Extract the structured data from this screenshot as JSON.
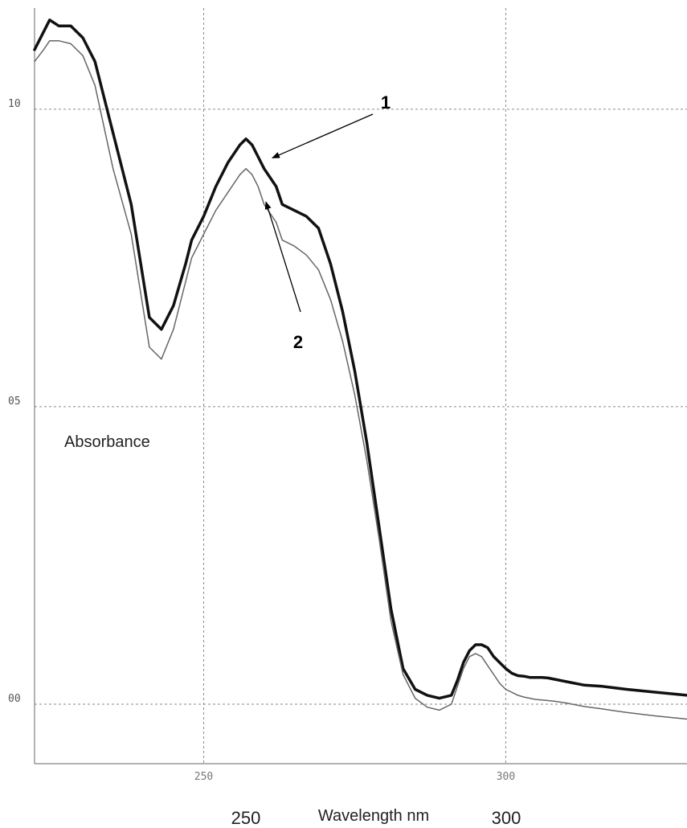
{
  "chart_data": {
    "type": "line",
    "xlabel": "Wavelength nm",
    "ylabel": "Absorbance",
    "xlim": [
      222,
      330
    ],
    "ylim": [
      -0.1,
      1.17
    ],
    "x_ticks_main": [
      {
        "value": 250,
        "label": "250"
      },
      {
        "value": 300,
        "label": "300"
      }
    ],
    "x_ticks_faint": [
      {
        "value": 250,
        "label": "250"
      },
      {
        "value": 300,
        "label": "300"
      }
    ],
    "y_ticks": [
      {
        "value": 1.0,
        "label": "10"
      },
      {
        "value": 0.5,
        "label": "05"
      },
      {
        "value": 0.0,
        "label": "00"
      }
    ],
    "grid": true,
    "series": [
      {
        "name": "1",
        "x": [
          222,
          223.5,
          224.5,
          226,
          228,
          230,
          232,
          235,
          238,
          241,
          243,
          245,
          247,
          248,
          250,
          252,
          254,
          256,
          257,
          258,
          259,
          260,
          262,
          263,
          265,
          267,
          269,
          271,
          273,
          275,
          277,
          279,
          281,
          283,
          285,
          287,
          289,
          291,
          292,
          293,
          294,
          295,
          296,
          297,
          298,
          299,
          300,
          301,
          302,
          303,
          304,
          305,
          306,
          307,
          308,
          310,
          313,
          316,
          320,
          325,
          330
        ],
        "y": [
          1.1,
          1.13,
          1.15,
          1.14,
          1.14,
          1.12,
          1.08,
          0.96,
          0.84,
          0.65,
          0.63,
          0.67,
          0.74,
          0.78,
          0.82,
          0.87,
          0.91,
          0.94,
          0.95,
          0.94,
          0.92,
          0.9,
          0.87,
          0.84,
          0.83,
          0.82,
          0.8,
          0.74,
          0.66,
          0.56,
          0.44,
          0.3,
          0.16,
          0.06,
          0.025,
          0.015,
          0.01,
          0.015,
          0.04,
          0.07,
          0.09,
          0.1,
          0.1,
          0.095,
          0.08,
          0.07,
          0.06,
          0.052,
          0.048,
          0.047,
          0.045,
          0.045,
          0.045,
          0.044,
          0.042,
          0.038,
          0.032,
          0.03,
          0.025,
          0.02,
          0.015
        ],
        "color": "#111111"
      },
      {
        "name": "2",
        "x": [
          222,
          223.5,
          224.5,
          226,
          228,
          230,
          232,
          235,
          238,
          241,
          243,
          245,
          247,
          248,
          250,
          252,
          254,
          256,
          257,
          258,
          259,
          260,
          262,
          263,
          265,
          267,
          269,
          271,
          273,
          275,
          277,
          279,
          281,
          283,
          285,
          287,
          289,
          291,
          292,
          293,
          294,
          295,
          296,
          297,
          298,
          299,
          300,
          301,
          302,
          303,
          304,
          305,
          306,
          307,
          308,
          310,
          313,
          316,
          320,
          325,
          330
        ],
        "y": [
          1.08,
          1.1,
          1.115,
          1.115,
          1.11,
          1.09,
          1.04,
          0.9,
          0.79,
          0.6,
          0.58,
          0.63,
          0.71,
          0.75,
          0.79,
          0.83,
          0.86,
          0.89,
          0.9,
          0.89,
          0.87,
          0.84,
          0.81,
          0.78,
          0.77,
          0.755,
          0.73,
          0.68,
          0.61,
          0.52,
          0.41,
          0.28,
          0.14,
          0.05,
          0.01,
          -0.005,
          -0.01,
          0.0,
          0.03,
          0.06,
          0.08,
          0.085,
          0.08,
          0.065,
          0.05,
          0.035,
          0.025,
          0.02,
          0.015,
          0.012,
          0.01,
          0.008,
          0.007,
          0.006,
          0.005,
          0.002,
          -0.004,
          -0.008,
          -0.014,
          -0.02,
          -0.025
        ],
        "color": "#666666"
      }
    ],
    "annotations": [
      {
        "text": "1",
        "target_series": 0,
        "target_x": 259.5
      },
      {
        "text": "2",
        "target_series": 1,
        "target_x": 259.5
      }
    ]
  }
}
